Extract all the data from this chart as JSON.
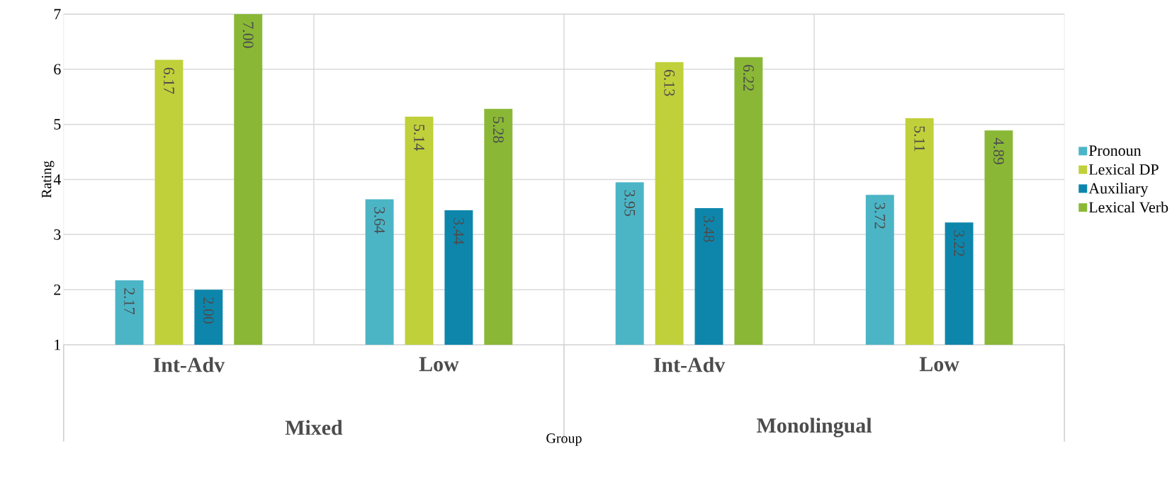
{
  "chart_data": {
    "type": "bar",
    "xlabel": "Group",
    "ylabel": "Rating",
    "categories": [
      "Int-Adv",
      "Low",
      "Int-Adv",
      "Low"
    ],
    "annotations": [
      "Mixed",
      "Monolingual"
    ],
    "series": [
      {
        "name": "Pronoun",
        "color": "#4bb5c6",
        "values": [
          2.17,
          3.64,
          3.95,
          3.72
        ],
        "value_labels": [
          "2.17",
          "3.64",
          "3.95",
          "3.72"
        ]
      },
      {
        "name": "Lexical DP",
        "color": "#c0d03a",
        "values": [
          6.17,
          5.14,
          6.13,
          5.11
        ],
        "value_labels": [
          "6.17",
          "5.14",
          "6.13",
          "5.11"
        ]
      },
      {
        "name": "Auxiliary",
        "color": "#0e86ac",
        "values": [
          2.0,
          3.44,
          3.48,
          3.22
        ],
        "value_labels": [
          "2.00",
          "3.44",
          "3.48",
          "3.22"
        ]
      },
      {
        "name": "Lexical Verb",
        "color": "#8ab836",
        "values": [
          7.0,
          5.28,
          6.22,
          4.89
        ],
        "value_labels": [
          "7.00",
          "5.28",
          "6.22",
          "4.89"
        ]
      }
    ],
    "ylim": [
      1,
      7
    ],
    "yticks": [
      1,
      2,
      3,
      4,
      5,
      6,
      7
    ],
    "grid": true,
    "legend": "right"
  }
}
